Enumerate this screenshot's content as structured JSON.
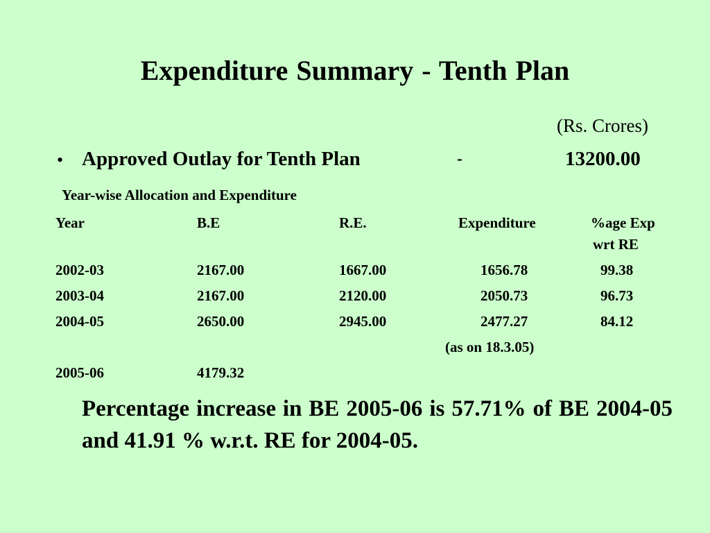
{
  "title": "Expenditure Summary   -    Tenth Plan",
  "unit_note": "(Rs. Crores)",
  "outlay": {
    "bullet": "•",
    "label": "Approved Outlay  for Tenth Plan",
    "dash": "-",
    "value": "13200.00"
  },
  "table": {
    "caption": "Year-wise Allocation and Expenditure",
    "headers": {
      "year": "Year",
      "be": "B.E",
      "re": "R.E.",
      "exp": "Expenditure",
      "pct_line1": "%age Exp",
      "pct_line2": "wrt RE"
    },
    "rows": [
      {
        "year": "2002-03",
        "be": "2167.00",
        "re": "1667.00",
        "exp": "1656.78",
        "pct": "99.38"
      },
      {
        "year": "2003-04",
        "be": "2167.00",
        "re": "2120.00",
        "exp": "2050.73",
        "pct": "96.73"
      },
      {
        "year": "2004-05",
        "be": "2650.00",
        "re": "2945.00",
        "exp": "2477.27",
        "pct": "84.12"
      },
      {
        "year": "2005-06",
        "be": "4179.32"
      }
    ],
    "note": "(as on 18.3.05)"
  },
  "conclusion": "Percentage  increase in BE 2005-06 is 57.71% of BE 2004-05 and 41.91 % w.r.t. RE for 2004-05."
}
